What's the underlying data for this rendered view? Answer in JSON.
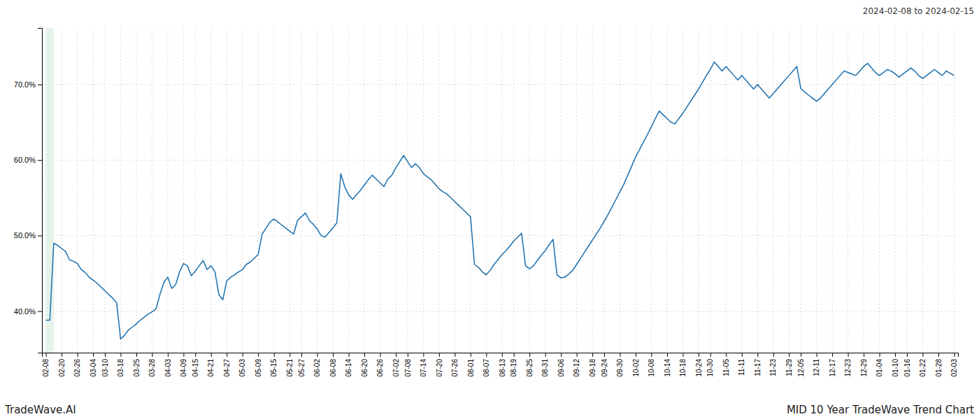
{
  "chart_data": {
    "type": "line",
    "title": "MID 10 Year TradeWave Trend Chart",
    "subtitle": "2024-02-08 to 2024-02-15",
    "annotations": [
      "TradeWave.AI"
    ],
    "color": "#1a6faf",
    "grid": true,
    "ylim": [
      0.345,
      0.775
    ],
    "yticks": [
      {
        "value": 0.4,
        "label": "40.0%"
      },
      {
        "value": 0.5,
        "label": "50.0%"
      },
      {
        "value": 0.6,
        "label": "60.0%"
      },
      {
        "value": 0.7,
        "label": "70.0%"
      }
    ],
    "highlight": {
      "start": 0,
      "end": 2,
      "color": "#d4edda"
    },
    "categories": [
      "02-08",
      null,
      null,
      null,
      "02-20",
      null,
      null,
      null,
      "02-26",
      null,
      null,
      null,
      "03-04",
      null,
      null,
      "03-10",
      null,
      null,
      null,
      "03-18",
      null,
      null,
      null,
      "03-25",
      null,
      null,
      null,
      "03-28",
      null,
      null,
      null,
      "04-03",
      null,
      null,
      null,
      "04-09",
      null,
      null,
      "04-15",
      null,
      null,
      null,
      "04-21",
      null,
      null,
      null,
      "04-27",
      null,
      null,
      null,
      "05-03",
      null,
      null,
      null,
      "05-09",
      null,
      null,
      null,
      "05-15",
      null,
      null,
      null,
      "05-21",
      null,
      null,
      "05-27",
      null,
      null,
      null,
      "06-02",
      null,
      null,
      null,
      "06-08",
      null,
      null,
      null,
      "06-14",
      null,
      null,
      null,
      "06-20",
      null,
      null,
      null,
      "06-26",
      null,
      null,
      null,
      "07-02",
      null,
      null,
      "07-08",
      null,
      null,
      null,
      "07-14",
      null,
      null,
      null,
      "07-20",
      null,
      null,
      null,
      "07-26",
      null,
      null,
      null,
      "08-01",
      null,
      null,
      null,
      "08-07",
      null,
      null,
      null,
      "08-13",
      null,
      null,
      "08-19",
      null,
      null,
      null,
      "08-25",
      null,
      null,
      null,
      "08-31",
      null,
      null,
      null,
      "09-06",
      null,
      null,
      null,
      "09-12",
      null,
      null,
      null,
      "09-18",
      null,
      null,
      "09-24",
      null,
      null,
      null,
      "09-30",
      null,
      null,
      null,
      "10-02",
      null,
      null,
      null,
      "10-08",
      null,
      null,
      null,
      "10-14",
      null,
      null,
      null,
      "10-18",
      null,
      null,
      null,
      "10-24",
      null,
      null,
      "10-30",
      null,
      null,
      null,
      "11-05",
      null,
      null,
      null,
      "11-11",
      null,
      null,
      null,
      "11-17",
      null,
      null,
      null,
      "11-23",
      null,
      null,
      null,
      "11-29",
      null,
      null,
      "12-05",
      null,
      null,
      null,
      "12-11",
      null,
      null,
      null,
      "12-17",
      null,
      null,
      null,
      "12-23",
      null,
      null,
      null,
      "12-29",
      null,
      null,
      null,
      "01-04",
      null,
      null,
      null,
      "01-10",
      null,
      null,
      "01-16",
      null,
      null,
      null,
      "01-22",
      null,
      null,
      null,
      "01-28",
      null,
      null,
      null,
      "02-03"
    ],
    "values": [
      0.388,
      0.388,
      0.49,
      0.487,
      0.483,
      0.479,
      0.468,
      0.466,
      0.463,
      0.455,
      0.451,
      0.445,
      0.441,
      0.437,
      0.432,
      0.427,
      0.422,
      0.417,
      0.411,
      0.363,
      0.368,
      0.375,
      0.379,
      0.383,
      0.388,
      0.392,
      0.396,
      0.399,
      0.403,
      0.422,
      0.438,
      0.445,
      0.43,
      0.435,
      0.452,
      0.463,
      0.46,
      0.447,
      0.453,
      0.46,
      0.467,
      0.455,
      0.46,
      0.452,
      0.422,
      0.415,
      0.44,
      0.445,
      0.448,
      0.452,
      0.455,
      0.462,
      0.465,
      0.47,
      0.475,
      0.502,
      0.51,
      0.518,
      0.522,
      0.518,
      0.514,
      0.51,
      0.506,
      0.502,
      0.52,
      0.525,
      0.53,
      0.52,
      0.515,
      0.509,
      0.5,
      0.498,
      0.504,
      0.51,
      0.517,
      0.582,
      0.565,
      0.554,
      0.548,
      0.554,
      0.56,
      0.567,
      0.574,
      0.58,
      0.575,
      0.57,
      0.565,
      0.575,
      0.58,
      0.59,
      0.598,
      0.606,
      0.598,
      0.59,
      0.595,
      0.59,
      0.582,
      0.578,
      0.574,
      0.568,
      0.562,
      0.558,
      0.555,
      0.55,
      0.545,
      0.54,
      0.535,
      0.53,
      0.525,
      0.462,
      0.458,
      0.452,
      0.448,
      0.454,
      0.462,
      0.468,
      0.475,
      0.48,
      0.486,
      0.493,
      0.498,
      0.503,
      0.46,
      0.456,
      0.46,
      0.467,
      0.474,
      0.48,
      0.488,
      0.495,
      0.448,
      0.444,
      0.445,
      0.449,
      0.454,
      0.462,
      0.47,
      0.478,
      0.486,
      0.494,
      0.502,
      0.51,
      0.519,
      0.528,
      0.538,
      0.548,
      0.558,
      0.568,
      0.58,
      0.592,
      0.604,
      0.614,
      0.624,
      0.634,
      0.644,
      0.655,
      0.665,
      0.66,
      0.655,
      0.65,
      0.648,
      0.655,
      0.662,
      0.67,
      0.678,
      0.686,
      0.694,
      0.703,
      0.712,
      0.72,
      0.73,
      0.724,
      0.718,
      0.724,
      0.718,
      0.712,
      0.706,
      0.712,
      0.706,
      0.7,
      0.694,
      0.7,
      0.694,
      0.688,
      0.682,
      0.688,
      0.694,
      0.7,
      0.706,
      0.712,
      0.718,
      0.724,
      0.695,
      0.69,
      0.686,
      0.682,
      0.678,
      0.682,
      0.688,
      0.694,
      0.7,
      0.706,
      0.712,
      0.718,
      0.716,
      0.714,
      0.712,
      0.718,
      0.724,
      0.728,
      0.722,
      0.716,
      0.712,
      0.716,
      0.72,
      0.718,
      0.714,
      0.71,
      0.714,
      0.718,
      0.722,
      0.718,
      0.712,
      0.708,
      0.712,
      0.716,
      0.72,
      0.716,
      0.712,
      0.718,
      0.715,
      0.712
    ]
  }
}
